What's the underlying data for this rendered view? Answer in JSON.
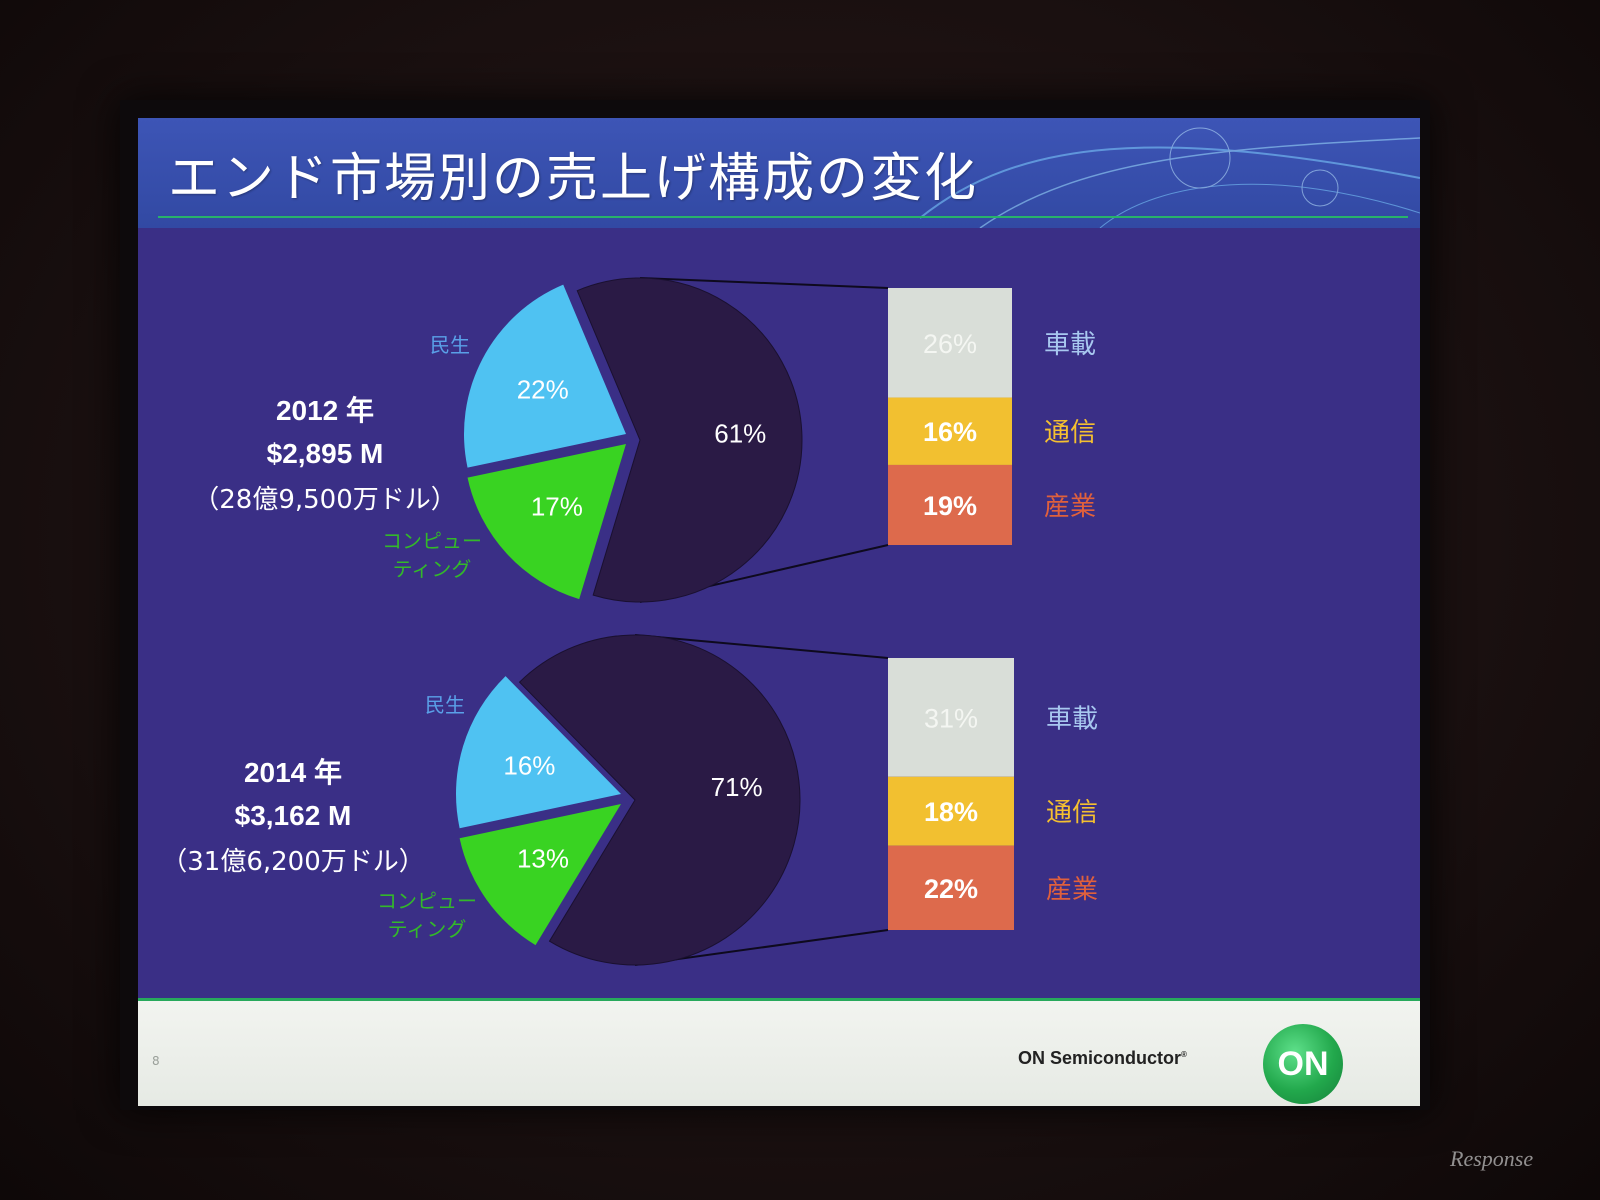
{
  "slide": {
    "title": "エンド市場別の売上げ構成の変化",
    "page_number": "8",
    "brand": "ON Semiconductor",
    "logo_text": "ON"
  },
  "watermark": "Response",
  "colors": {
    "consumer": "#4fc2f2",
    "computing": "#39d322",
    "other": "#2a1a45",
    "automotive": "#d9ded8",
    "communications": "#f2c030",
    "industrial": "#dd6a4c",
    "label_consumer": "#5aa0e8",
    "label_computing": "#33b82a",
    "label_automotive": "#a8c8f0",
    "label_communications": "#f5c030",
    "label_industrial": "#e0603c"
  },
  "chart_data": [
    {
      "type": "pie",
      "title": "2012 年",
      "total": "$2,895 M",
      "total_jp": "（28億9,500万ドル）",
      "slices": [
        {
          "label": "民生",
          "value": 22,
          "display": "22%"
        },
        {
          "label": "コンピュー\nティング",
          "value": 17,
          "display": "17%"
        },
        {
          "label": "",
          "value": 61,
          "display": "61%"
        }
      ],
      "breakdown": [
        {
          "label": "車載",
          "value": 26,
          "display": "26%"
        },
        {
          "label": "通信",
          "value": 16,
          "display": "16%"
        },
        {
          "label": "産業",
          "value": 19,
          "display": "19%"
        }
      ]
    },
    {
      "type": "pie",
      "title": "2014 年",
      "total": "$3,162 M",
      "total_jp": "（31億6,200万ドル）",
      "slices": [
        {
          "label": "民生",
          "value": 16,
          "display": "16%"
        },
        {
          "label": "コンピュー\nティング",
          "value": 13,
          "display": "13%"
        },
        {
          "label": "",
          "value": 71,
          "display": "71%"
        }
      ],
      "breakdown": [
        {
          "label": "車載",
          "value": 31,
          "display": "31%"
        },
        {
          "label": "通信",
          "value": 18,
          "display": "18%"
        },
        {
          "label": "産業",
          "value": 22,
          "display": "22%"
        }
      ]
    }
  ]
}
